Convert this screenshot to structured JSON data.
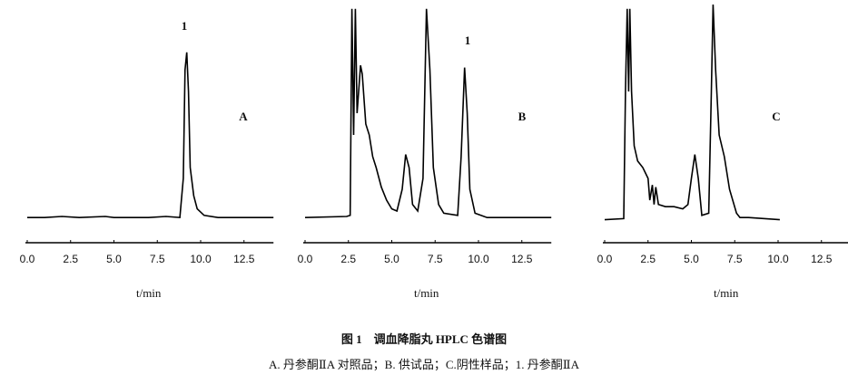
{
  "chart_data": [
    {
      "type": "line",
      "panel_label": "A",
      "peak_label": "1",
      "xlabel": "t/min",
      "xlim": [
        0,
        14.2
      ],
      "ylim": [
        0,
        100
      ],
      "xticks": [
        {
          "value": 0,
          "label": "0.0"
        },
        2.5,
        {
          "value": 5,
          "label": "5.0"
        },
        7.5,
        {
          "value": 10,
          "label": "10.0"
        },
        12.5
      ],
      "x": [
        0,
        1,
        2,
        3,
        4.5,
        5,
        6,
        7,
        8,
        8.8,
        9.0,
        9.1,
        9.2,
        9.3,
        9.4,
        9.6,
        9.8,
        10.2,
        11,
        14.2
      ],
      "series": [
        {
          "color": "#000000",
          "values": [
            2,
            2,
            2.5,
            2,
            2.5,
            2,
            2,
            2,
            2.5,
            2,
            20,
            70,
            78,
            60,
            25,
            12,
            6,
            3,
            2,
            2
          ]
        }
      ]
    },
    {
      "type": "line",
      "panel_label": "B",
      "peak_label": "1",
      "xlabel": "t/min",
      "xlim": [
        0,
        14.2
      ],
      "ylim": [
        0,
        100
      ],
      "xticks": [
        {
          "value": 0,
          "label": "0.0"
        },
        2.5,
        {
          "value": 5,
          "label": "5.0"
        },
        7.5,
        {
          "value": 10,
          "label": "10.0"
        },
        12.5
      ],
      "x": [
        0,
        2.4,
        2.6,
        2.7,
        2.8,
        2.9,
        3.0,
        3.2,
        3.3,
        3.5,
        3.7,
        3.9,
        4.1,
        4.4,
        4.7,
        5.0,
        5.3,
        5.6,
        5.8,
        6.0,
        6.2,
        6.5,
        6.8,
        7.0,
        7.2,
        7.4,
        7.7,
        8.0,
        8.8,
        9.0,
        9.2,
        9.35,
        9.5,
        9.8,
        10.5,
        14.2
      ],
      "series": [
        {
          "color": "#000000",
          "values": [
            2,
            2.5,
            3,
            98,
            40,
            98,
            50,
            72,
            68,
            45,
            40,
            30,
            25,
            16,
            10,
            6,
            5,
            15,
            31,
            25,
            8,
            5,
            20,
            98,
            70,
            25,
            8,
            4,
            3,
            30,
            71,
            50,
            15,
            4,
            2,
            2
          ]
        }
      ]
    },
    {
      "type": "line",
      "panel_label": "C",
      "peak_label": null,
      "xlabel": "t/min",
      "xlim": [
        0,
        14.2
      ],
      "ylim": [
        0,
        100
      ],
      "xticks": [
        {
          "value": 0,
          "label": "0.0"
        },
        2.5,
        {
          "value": 5,
          "label": "5.0"
        },
        7.5,
        {
          "value": 10,
          "label": "10.0"
        },
        12.5
      ],
      "x": [
        0,
        1.1,
        1.2,
        1.3,
        1.38,
        1.45,
        1.55,
        1.7,
        1.9,
        2.2,
        2.5,
        2.6,
        2.75,
        2.85,
        2.95,
        3.1,
        3.5,
        4.0,
        4.5,
        4.8,
        5.0,
        5.2,
        5.4,
        5.6,
        6.0,
        6.15,
        6.25,
        6.4,
        6.6,
        6.9,
        7.2,
        7.6,
        7.8,
        8.3,
        10.1
      ],
      "series": [
        {
          "color": "#000000",
          "values": [
            1,
            1.5,
            60,
            98,
            60,
            98,
            60,
            35,
            28,
            25,
            20,
            10,
            17,
            8,
            16,
            8,
            7,
            7,
            6,
            8,
            20,
            31,
            20,
            3,
            4,
            60,
            100,
            70,
            40,
            30,
            15,
            4,
            2,
            2,
            1
          ]
        }
      ]
    }
  ],
  "caption": {
    "title": "图 1　调血降脂丸 HPLC 色谱图",
    "legend": "A. 丹参酮ⅡA 对照品；B. 供试品；C.阴性样品；1. 丹参酮ⅡA"
  }
}
